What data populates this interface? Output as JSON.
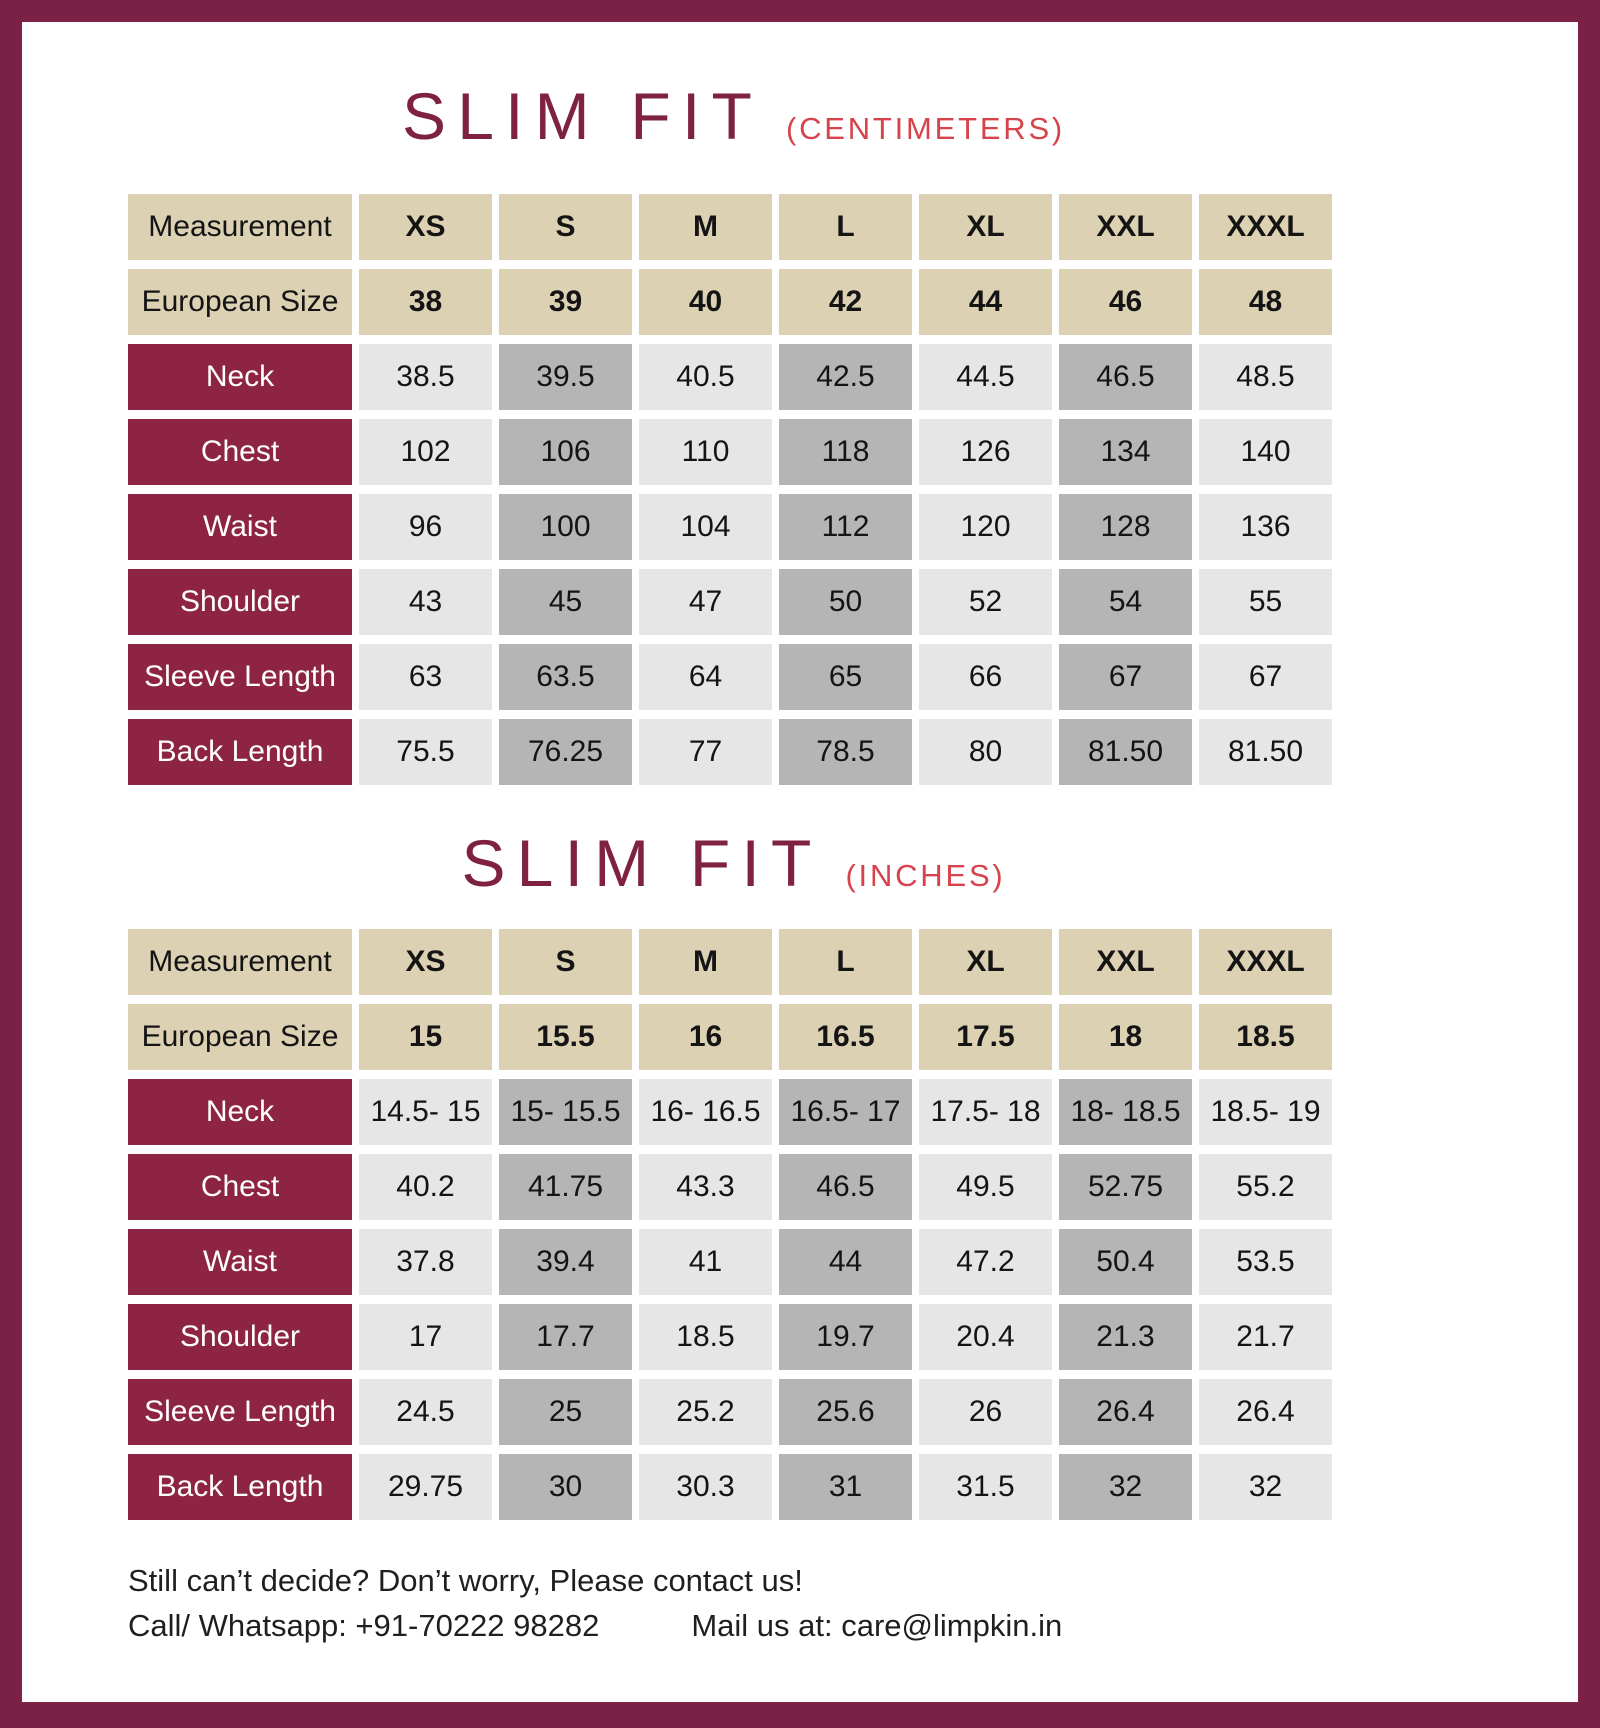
{
  "colors": {
    "frame_border": "#7a2145",
    "title_maroon": "#7e2142",
    "unit_red": "#d7434c",
    "header_tan": "#ddd1b4",
    "label_maroon": "#8e2444",
    "cell_light": "#e6e6e6",
    "cell_dark": "#b5b5b5"
  },
  "tables": [
    {
      "title": "SLIM FIT",
      "unit_label": "(CENTIMETERS)",
      "header_label": "Measurement",
      "size_headers": [
        "XS",
        "S",
        "M",
        "L",
        "XL",
        "XXL",
        "XXXL"
      ],
      "euro_label": "European Size",
      "euro_values": [
        "38",
        "39",
        "40",
        "42",
        "44",
        "46",
        "48"
      ],
      "rows": [
        {
          "label": "Neck",
          "values": [
            "38.5",
            "39.5",
            "40.5",
            "42.5",
            "44.5",
            "46.5",
            "48.5"
          ]
        },
        {
          "label": "Chest",
          "values": [
            "102",
            "106",
            "110",
            "118",
            "126",
            "134",
            "140"
          ]
        },
        {
          "label": "Waist",
          "values": [
            "96",
            "100",
            "104",
            "112",
            "120",
            "128",
            "136"
          ]
        },
        {
          "label": "Shoulder",
          "values": [
            "43",
            "45",
            "47",
            "50",
            "52",
            "54",
            "55"
          ]
        },
        {
          "label": "Sleeve Length",
          "values": [
            "63",
            "63.5",
            "64",
            "65",
            "66",
            "67",
            "67"
          ]
        },
        {
          "label": "Back Length",
          "values": [
            "75.5",
            "76.25",
            "77",
            "78.5",
            "80",
            "81.50",
            "81.50"
          ]
        }
      ]
    },
    {
      "title": "SLIM FIT",
      "unit_label": "(INCHES)",
      "header_label": "Measurement",
      "size_headers": [
        "XS",
        "S",
        "M",
        "L",
        "XL",
        "XXL",
        "XXXL"
      ],
      "euro_label": "European Size",
      "euro_values": [
        "15",
        "15.5",
        "16",
        "16.5",
        "17.5",
        "18",
        "18.5"
      ],
      "rows": [
        {
          "label": "Neck",
          "values": [
            "14.5- 15",
            "15- 15.5",
            "16- 16.5",
            "16.5- 17",
            "17.5- 18",
            "18- 18.5",
            "18.5- 19"
          ]
        },
        {
          "label": "Chest",
          "values": [
            "40.2",
            "41.75",
            "43.3",
            "46.5",
            "49.5",
            "52.75",
            "55.2"
          ]
        },
        {
          "label": "Waist",
          "values": [
            "37.8",
            "39.4",
            "41",
            "44",
            "47.2",
            "50.4",
            "53.5"
          ]
        },
        {
          "label": "Shoulder",
          "values": [
            "17",
            "17.7",
            "18.5",
            "19.7",
            "20.4",
            "21.3",
            "21.7"
          ]
        },
        {
          "label": "Sleeve Length",
          "values": [
            "24.5",
            "25",
            "25.2",
            "25.6",
            "26",
            "26.4",
            "26.4"
          ]
        },
        {
          "label": "Back Length",
          "values": [
            "29.75",
            "30",
            "30.3",
            "31",
            "31.5",
            "32",
            "32"
          ]
        }
      ]
    }
  ],
  "footer": {
    "line1": "Still can’t decide? Don’t worry, Please contact us!",
    "call": "Call/ Whatsapp: +91-70222 98282",
    "mail": "Mail us at: care@limpkin.in"
  }
}
